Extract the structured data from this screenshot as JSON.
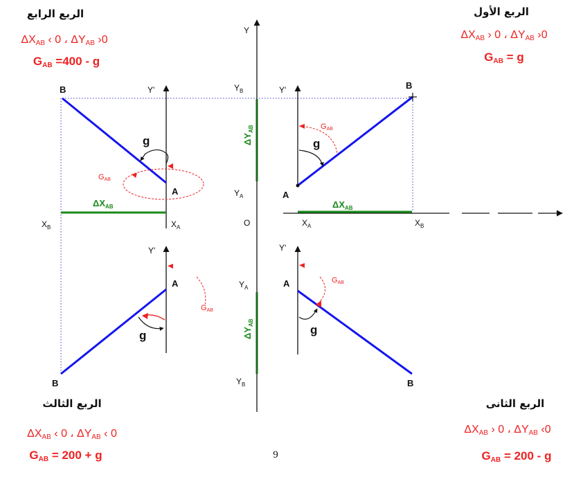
{
  "quadrants": {
    "first": {
      "title": "الربع الأول",
      "condition": {
        "dx": "ΔX",
        "dx_sub": "AB",
        "dx_rel": " › 0 ، ",
        "dy": "ΔY",
        "dy_sub": "AB",
        "dy_rel": " ›0"
      },
      "formula": {
        "g": "G",
        "g_sub": "AB",
        "rhs": " = g"
      }
    },
    "second": {
      "title": "الربع الثانى",
      "condition": {
        "dx": "ΔX",
        "dx_sub": "AB",
        "dx_rel": " › 0 ، ",
        "dy": "ΔY",
        "dy_sub": "AB",
        "dy_rel": " ‹0"
      },
      "formula": {
        "g": "G",
        "g_sub": "AB",
        "rhs": " = 200 - g"
      }
    },
    "third": {
      "title": "الربع الثالث",
      "condition": {
        "dx": "ΔX",
        "dx_sub": "AB",
        "dx_rel": " ‹ 0 ، ",
        "dy": "ΔY",
        "dy_sub": "AB",
        "dy_rel": " ‹ 0"
      },
      "formula": {
        "g": "G",
        "g_sub": "AB",
        "rhs": " = 200 + g"
      }
    },
    "fourth": {
      "title": "الربع الرابع",
      "condition": {
        "dx": "ΔX",
        "dx_sub": "AB",
        "dx_rel": " ‹ 0 ، ",
        "dy": "ΔY",
        "dy_sub": "AB",
        "dy_rel": " ›0"
      },
      "formula": {
        "g": "G",
        "g_sub": "AB",
        "rhs": " =400 - g"
      }
    }
  },
  "labels": {
    "point_a": "A",
    "point_b": "B",
    "angle_g": "g",
    "bearing": {
      "base": "G",
      "sub": "AB"
    },
    "y_axis": "Y",
    "origin": "O",
    "y_prime": "Y'",
    "x": "X",
    "y": "Y",
    "sub_a": "A",
    "sub_b": "B",
    "delta_x": {
      "base": "ΔX",
      "sub": "AB"
    },
    "delta_y": {
      "base": "ΔY",
      "sub": "AB"
    }
  },
  "colors": {
    "line": "#1515ee",
    "delta": "#1a8a1a",
    "accent": "#ee2222",
    "text": "#111111"
  },
  "page_number": "9"
}
